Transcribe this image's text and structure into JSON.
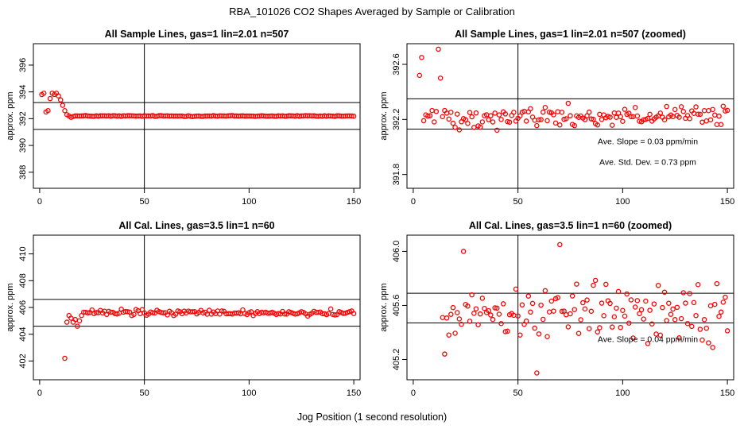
{
  "figure": {
    "title": "RBA_101026  CO2 Shapes Averaged by Sample or Calibration",
    "xlabel": "Jog Position (1 second resolution)"
  },
  "colors": {
    "points": "#ff0000",
    "axes": "#000000",
    "background": "#ffffff"
  },
  "chart_data": [
    {
      "id": "p1",
      "type": "scatter",
      "title": "All Sample Lines, gas=1 lin=2.01 n=507",
      "ylabel": "approx. ppm",
      "xlim": [
        -3,
        153
      ],
      "ylim": [
        386.8,
        397.6
      ],
      "xticks": [
        0,
        50,
        100,
        150
      ],
      "yticks": [
        388,
        390,
        392,
        394,
        396
      ],
      "hlines": [
        393.2,
        391.2
      ],
      "vline": 50,
      "annotations": [],
      "series": [
        {
          "name": "sample",
          "x": [],
          "y": [],
          "profile": {
            "base": 392.2,
            "amp": 0.06,
            "start": 1,
            "end": 150,
            "knots": [
              [
                1,
                393.8
              ],
              [
                2,
                393.9
              ],
              [
                3,
                392.5
              ],
              [
                4,
                392.6
              ],
              [
                5,
                393.5
              ],
              [
                6,
                393.9
              ],
              [
                7,
                393.8
              ],
              [
                8,
                393.9
              ],
              [
                9,
                393.7
              ],
              [
                10,
                393.4
              ],
              [
                11,
                393.0
              ],
              [
                12,
                392.6
              ],
              [
                13,
                392.3
              ],
              [
                14,
                392.2
              ],
              [
                15,
                392.1
              ]
            ]
          }
        }
      ]
    },
    {
      "id": "p2",
      "type": "scatter",
      "title": "All Sample Lines, gas=1 lin=2.01 n=507 (zoomed)",
      "ylabel": "approx. ppm",
      "xlim": [
        -3,
        153
      ],
      "ylim": [
        391.7,
        392.75
      ],
      "xticks": [
        0,
        50,
        100,
        150
      ],
      "yticks": [
        391.8,
        392.2,
        392.6
      ],
      "hlines": [
        392.35,
        392.13
      ],
      "vline": 50,
      "annotations": [
        {
          "text": "Ave. Slope =  0.03  ppm/min",
          "x": 112,
          "y": 392.02
        },
        {
          "text": "Ave. Std. Dev. =  0.73  ppm",
          "x": 112,
          "y": 391.87
        }
      ],
      "series": [
        {
          "name": "sample",
          "x": [],
          "y": [],
          "profile": {
            "base": 392.22,
            "amp": 0.12,
            "start": 3,
            "end": 150,
            "knots": [
              [
                3,
                392.52
              ],
              [
                4,
                392.65
              ],
              [
                12,
                392.71
              ],
              [
                13,
                392.5
              ],
              [
                14,
                392.22
              ]
            ]
          }
        }
      ]
    },
    {
      "id": "p3",
      "type": "scatter",
      "title": "All Cal. Lines, gas=3.5 lin=1 n=60",
      "ylabel": "approx. ppm",
      "xlim": [
        -3,
        153
      ],
      "ylim": [
        400.6,
        411.4
      ],
      "xticks": [
        0,
        50,
        100,
        150
      ],
      "yticks": [
        402,
        404,
        406,
        408,
        410
      ],
      "hlines": [
        406.6,
        404.6
      ],
      "vline": 50,
      "annotations": [],
      "series": [
        {
          "name": "calibration",
          "x": [],
          "y": [],
          "profile": {
            "base": 405.6,
            "amp": 0.35,
            "start": 12,
            "end": 150,
            "knots": [
              [
                12,
                402.2
              ],
              [
                13,
                404.9
              ],
              [
                14,
                405.4
              ],
              [
                15,
                405.2
              ],
              [
                16,
                404.9
              ],
              [
                17,
                405.1
              ],
              [
                18,
                404.6
              ],
              [
                19,
                405.0
              ],
              [
                20,
                405.4
              ]
            ]
          }
        }
      ]
    },
    {
      "id": "p4",
      "type": "scatter",
      "title": "All Cal. Lines, gas=3.5 lin=1 n=60 (zoomed)",
      "ylabel": "approx. ppm",
      "xlim": [
        -3,
        153
      ],
      "ylim": [
        405.05,
        406.12
      ],
      "xticks": [
        0,
        50,
        100,
        150
      ],
      "yticks": [
        405.2,
        405.6,
        406.0
      ],
      "hlines": [
        405.69,
        405.47
      ],
      "vline": 50,
      "annotations": [
        {
          "text": "Ave. Slope =  0.04  ppm/min",
          "x": 112,
          "y": 405.33
        }
      ],
      "series": [
        {
          "name": "calibration",
          "x": [],
          "y": [],
          "profile": {
            "base": 405.56,
            "amp": 0.32,
            "start": 14,
            "end": 150,
            "knots": [
              [
                14,
                405.51
              ],
              [
                15,
                405.24
              ],
              [
                24,
                406.0
              ],
              [
                59,
                405.1
              ],
              [
                70,
                406.05
              ]
            ]
          }
        }
      ]
    }
  ]
}
